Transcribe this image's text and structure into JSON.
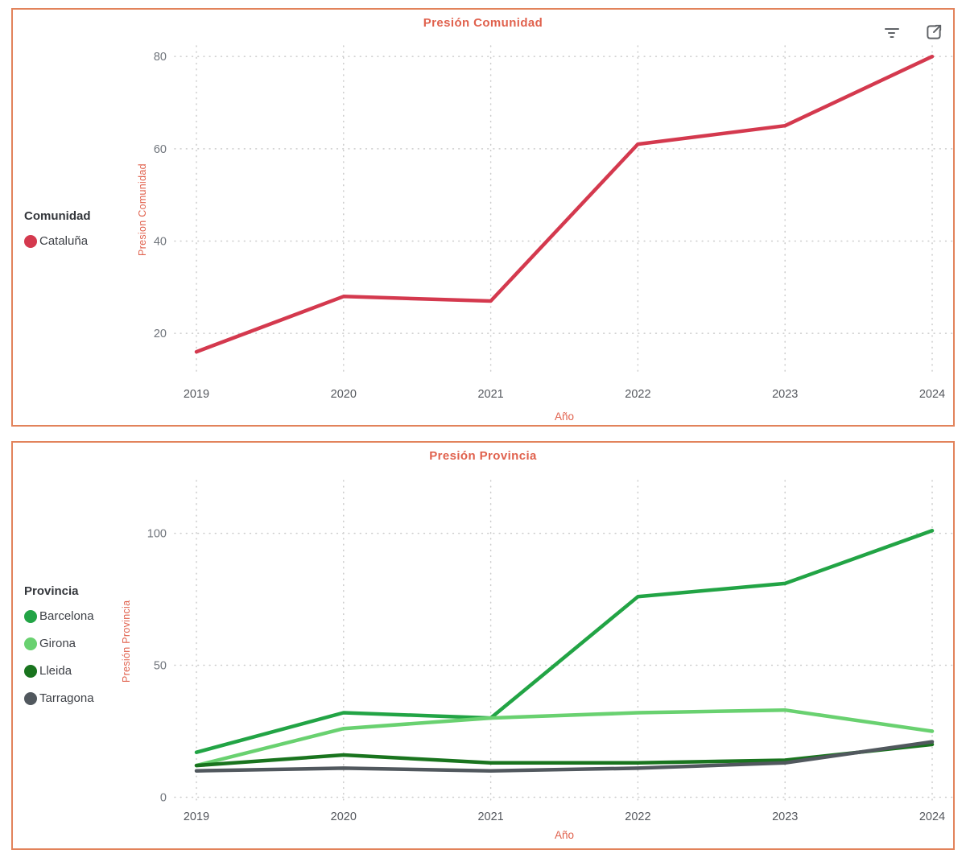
{
  "theme": {
    "card_border_color": "#E2835B",
    "accent_text_color": "#E0614D",
    "gridline_color": "#CBCBCB",
    "x_tick_color": "#54575D",
    "y_tick_color": "#6F747B",
    "icon_color": "#5F6266"
  },
  "header_icons": [
    {
      "name": "filter-icon"
    },
    {
      "name": "focus-mode-icon"
    }
  ],
  "chart_data": [
    {
      "type": "line",
      "title": "Presión Comunidad",
      "xlabel": "Año",
      "ylabel": "Presion Comunidad",
      "legend_title": "Comunidad",
      "legend_position": "left",
      "grid": "dotted",
      "x": [
        "2019",
        "2020",
        "2021",
        "2022",
        "2023",
        "2024"
      ],
      "yticks": [
        20,
        40,
        60,
        80
      ],
      "ylim": [
        11.3,
        82.3
      ],
      "series": [
        {
          "name": "Cataluña",
          "color": "#D4394E",
          "values": [
            16,
            28,
            27,
            61,
            65,
            80
          ]
        }
      ]
    },
    {
      "type": "line",
      "title": "Presión Provincia",
      "xlabel": "Año",
      "ylabel": "Presión Provincia",
      "legend_title": "Provincia",
      "legend_position": "left",
      "grid": "dotted",
      "x": [
        "2019",
        "2020",
        "2021",
        "2022",
        "2023",
        "2024"
      ],
      "yticks": [
        0,
        50,
        100
      ],
      "ylim": [
        -2,
        120
      ],
      "series": [
        {
          "name": "Barcelona",
          "color": "#22A445",
          "values": [
            17,
            32,
            30,
            76,
            81,
            101
          ]
        },
        {
          "name": "Girona",
          "color": "#69D170",
          "values": [
            12,
            26,
            30,
            32,
            33,
            25
          ]
        },
        {
          "name": "Lleida",
          "color": "#19741E",
          "values": [
            12,
            16,
            13,
            13,
            14,
            20
          ]
        },
        {
          "name": "Tarragona",
          "color": "#51585E",
          "values": [
            10,
            11,
            10,
            11,
            13,
            21
          ]
        }
      ]
    }
  ]
}
